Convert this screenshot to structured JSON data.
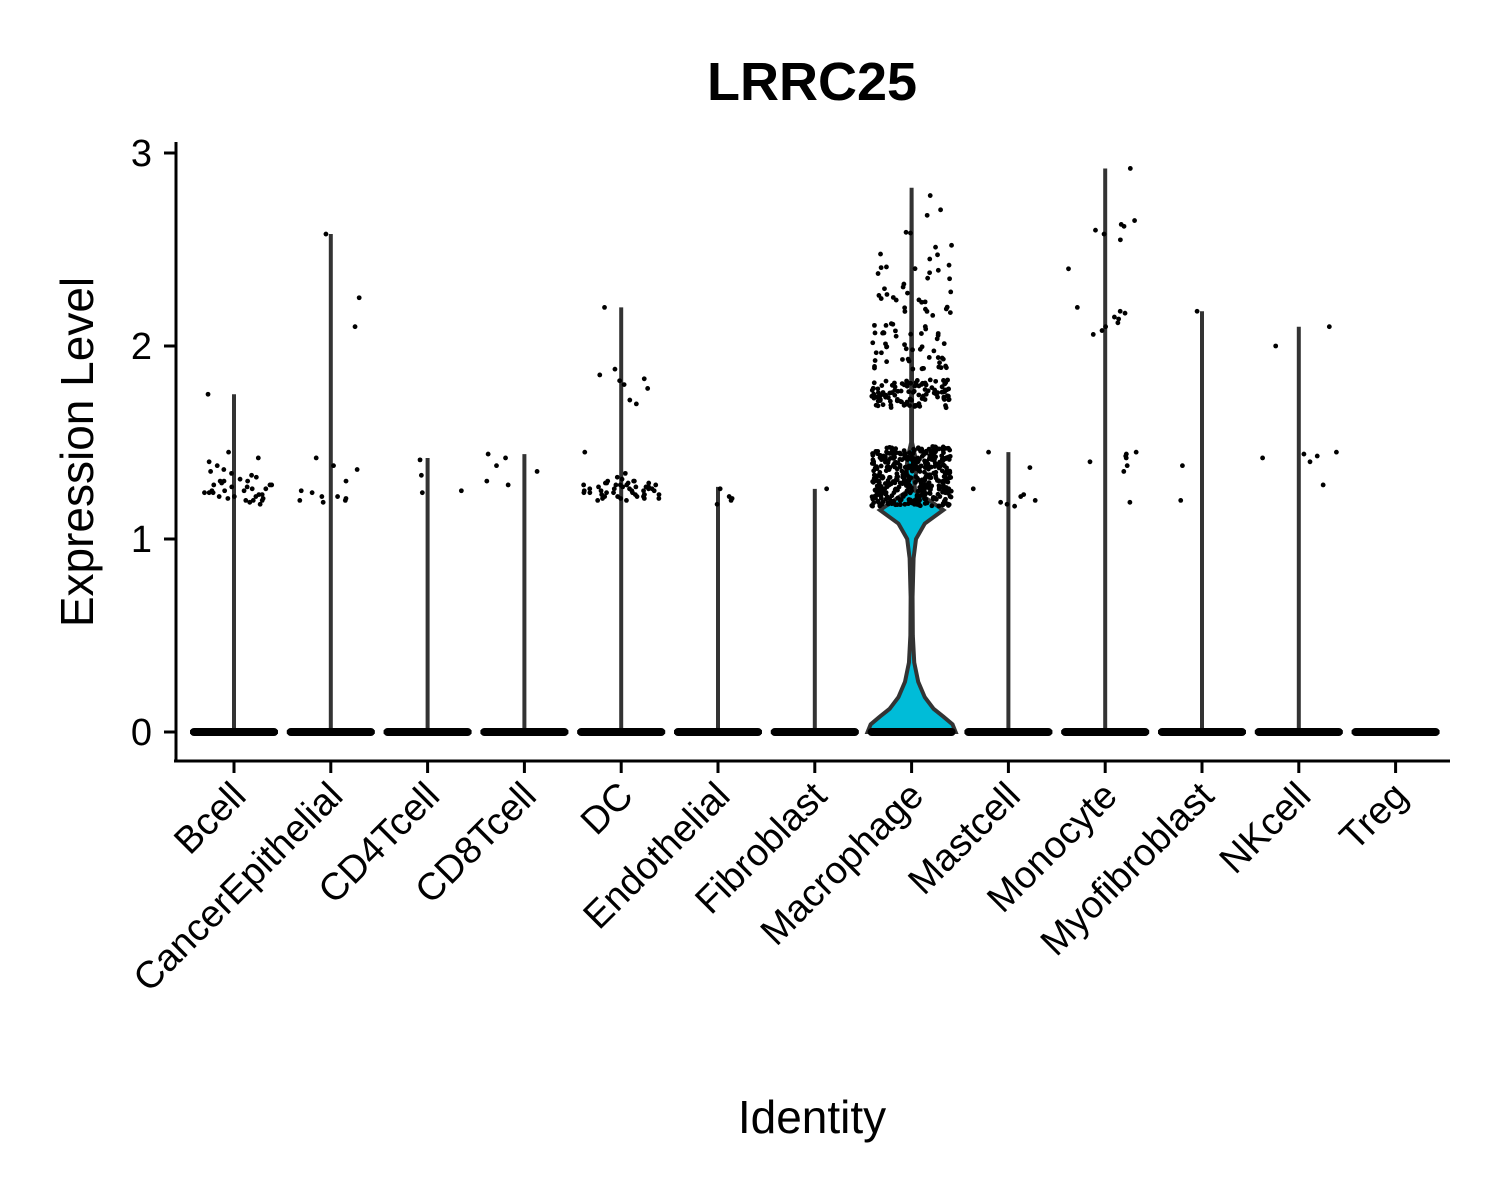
{
  "chart_data": {
    "type": "violin",
    "title": "LRRC25",
    "xlabel": "Identity",
    "ylabel": "Expression Level",
    "ylim": [
      -0.15,
      3.05
    ],
    "yticks": [
      0,
      1,
      2,
      3
    ],
    "grid": false,
    "legend": "none",
    "fill_color": "#00BCD8",
    "stroke_color": "#333333",
    "point_color": "#000000",
    "categories": [
      "Bcell",
      "CancerEpithelial",
      "CD4Tcell",
      "CD8Tcell",
      "DC",
      "Endothelial",
      "Fibroblast",
      "Macrophage",
      "Mastcell",
      "Monocyte",
      "Myofibroblast",
      "NKcell",
      "Treg"
    ],
    "max_values": [
      1.75,
      2.58,
      1.42,
      1.44,
      2.2,
      1.27,
      1.26,
      2.82,
      1.45,
      2.92,
      2.18,
      2.1,
      0
    ],
    "nonzero_points": [
      [
        1.2,
        1.22,
        1.25,
        1.28,
        1.3,
        1.27,
        1.24,
        1.21,
        1.19,
        1.23,
        1.26,
        1.29,
        1.32,
        1.35,
        1.31,
        1.28,
        1.25,
        1.22,
        1.2,
        1.18,
        1.24,
        1.27,
        1.33,
        1.36,
        1.38,
        1.3,
        1.26,
        1.23,
        1.21,
        1.45,
        1.42,
        1.4,
        1.75,
        1.3,
        1.25,
        1.22,
        1.28,
        1.34,
        1.2,
        1.24
      ],
      [
        2.58,
        2.25,
        2.1,
        1.42,
        1.38,
        1.36,
        1.3,
        1.25,
        1.22,
        1.2,
        1.2,
        1.19,
        1.21,
        1.24,
        1.22
      ],
      [
        1.41,
        1.33,
        1.25,
        1.24
      ],
      [
        1.44,
        1.42,
        1.38,
        1.35,
        1.3,
        1.28
      ],
      [
        2.2,
        1.88,
        1.85,
        1.83,
        1.82,
        1.8,
        1.78,
        1.72,
        1.7,
        1.45,
        1.34,
        1.32,
        1.31,
        1.3,
        1.29,
        1.28,
        1.28,
        1.27,
        1.27,
        1.26,
        1.26,
        1.25,
        1.25,
        1.24,
        1.24,
        1.23,
        1.23,
        1.22,
        1.22,
        1.21,
        1.21,
        1.2,
        1.2,
        1.3,
        1.29,
        1.28,
        1.27,
        1.26,
        1.25,
        1.24,
        1.23,
        1.22,
        1.21,
        1.29,
        1.27,
        1.25,
        1.23,
        1.26,
        1.28,
        1.24,
        1.3,
        1.22,
        1.27,
        1.25,
        1.23,
        1.29,
        1.26,
        1.24,
        1.28,
        1.21
      ],
      [
        1.26,
        1.22,
        1.21,
        1.2,
        1.18
      ],
      [
        1.26
      ],
      [],
      [
        1.45,
        1.37,
        1.26,
        1.23,
        1.22,
        1.2,
        1.19,
        1.18,
        1.17
      ],
      [
        2.92,
        2.65,
        2.63,
        2.62,
        2.6,
        2.58,
        2.55,
        2.4,
        2.2,
        2.18,
        2.17,
        2.15,
        2.14,
        2.12,
        2.1,
        2.08,
        2.06,
        1.45,
        1.44,
        1.43,
        1.42,
        1.4,
        1.38,
        1.35,
        1.19
      ],
      [
        2.18,
        1.38,
        1.2
      ],
      [
        2.1,
        2.0,
        1.45,
        1.44,
        1.43,
        1.42,
        1.4,
        1.28
      ],
      []
    ],
    "macrophage_point_bands": [
      [
        1.17,
        1.48,
        420
      ],
      [
        1.68,
        1.83,
        110
      ],
      [
        1.88,
        2.12,
        50
      ],
      [
        2.15,
        2.42,
        30
      ],
      [
        2.45,
        2.82,
        10
      ]
    ],
    "macrophage_density": [
      [
        0,
        1.0
      ],
      [
        0.04,
        0.93
      ],
      [
        0.08,
        0.72
      ],
      [
        0.12,
        0.5
      ],
      [
        0.18,
        0.3
      ],
      [
        0.26,
        0.15
      ],
      [
        0.36,
        0.06
      ],
      [
        0.5,
        0.028
      ],
      [
        0.7,
        0.022
      ],
      [
        0.9,
        0.045
      ],
      [
        1.0,
        0.1
      ],
      [
        1.08,
        0.3
      ],
      [
        1.15,
        0.72
      ],
      [
        1.2,
        0.4
      ],
      [
        1.25,
        0.08
      ],
      [
        1.3,
        0.06
      ],
      [
        1.36,
        0.12
      ],
      [
        1.42,
        0.09
      ],
      [
        1.5,
        0.01
      ],
      [
        1.7,
        0.01
      ],
      [
        2.82,
        0
      ]
    ]
  }
}
